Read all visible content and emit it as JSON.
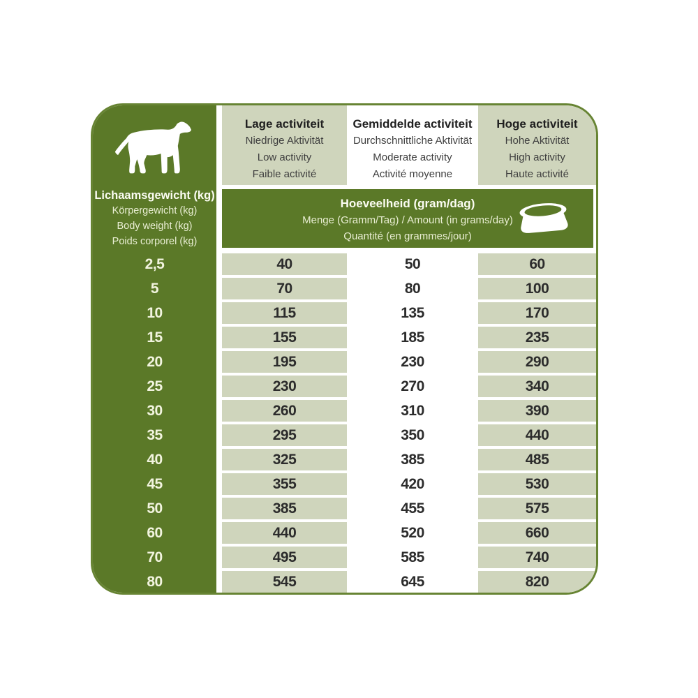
{
  "colors": {
    "dark_green": "#5b7928",
    "light_green": "#cfd5bc",
    "border_green": "#678433",
    "num": "#2c2c2c",
    "pale": "#e9eed3",
    "pale_bold": "#fbfcf2",
    "pale_num": "#f2f4df"
  },
  "icons": {
    "dog": "dog-silhouette-icon",
    "bowl": "dog-bowl-icon"
  },
  "left_column": {
    "header": {
      "bold": "Lichaamsgewicht (kg)",
      "lines": [
        "Körpergewicht (kg)",
        "Body weight (kg)",
        "Poids corporel (kg)"
      ]
    }
  },
  "activity_columns": [
    {
      "bold": "Lage activiteit",
      "lines": [
        "Niedrige Aktivität",
        "Low activity",
        "Faible activité"
      ]
    },
    {
      "bold": "Gemiddelde activiteit",
      "lines": [
        "Durchschnittliche Aktivität",
        "Moderate activity",
        "Activité moyenne"
      ]
    },
    {
      "bold": "Hoge activiteit",
      "lines": [
        "Hohe Aktivität",
        "High activity",
        "Haute activité"
      ]
    }
  ],
  "amount_banner": {
    "bold": "Hoeveelheid (gram/dag)",
    "line2": "Menge (Gramm/Tag) / Amount (in grams/day)",
    "line3": "Quantité (en grammes/jour)"
  },
  "rows": [
    {
      "weight": "2,5",
      "low": 40,
      "moderate": 50,
      "high": 60
    },
    {
      "weight": "5",
      "low": 70,
      "moderate": 80,
      "high": 100
    },
    {
      "weight": "10",
      "low": 115,
      "moderate": 135,
      "high": 170
    },
    {
      "weight": "15",
      "low": 155,
      "moderate": 185,
      "high": 235
    },
    {
      "weight": "20",
      "low": 195,
      "moderate": 230,
      "high": 290
    },
    {
      "weight": "25",
      "low": 230,
      "moderate": 270,
      "high": 340
    },
    {
      "weight": "30",
      "low": 260,
      "moderate": 310,
      "high": 390
    },
    {
      "weight": "35",
      "low": 295,
      "moderate": 350,
      "high": 440
    },
    {
      "weight": "40",
      "low": 325,
      "moderate": 385,
      "high": 485
    },
    {
      "weight": "45",
      "low": 355,
      "moderate": 420,
      "high": 530
    },
    {
      "weight": "50",
      "low": 385,
      "moderate": 455,
      "high": 575
    },
    {
      "weight": "60",
      "low": 440,
      "moderate": 520,
      "high": 660
    },
    {
      "weight": "70",
      "low": 495,
      "moderate": 585,
      "high": 740
    },
    {
      "weight": "80",
      "low": 545,
      "moderate": 645,
      "high": 820
    }
  ],
  "chart_data": {
    "type": "table",
    "title": "Hoeveelheid (gram/dag)",
    "xlabel": "Lichaamsgewicht (kg) / Body weight (kg)",
    "ylabel": "gram/dag / grams per day",
    "categories": [
      "2,5",
      "5",
      "10",
      "15",
      "20",
      "25",
      "30",
      "35",
      "40",
      "45",
      "50",
      "60",
      "70",
      "80"
    ],
    "series": [
      {
        "name": "Lage activiteit / Low activity",
        "values": [
          40,
          70,
          115,
          155,
          195,
          230,
          260,
          295,
          325,
          355,
          385,
          440,
          495,
          545
        ]
      },
      {
        "name": "Gemiddelde activiteit / Moderate activity",
        "values": [
          50,
          80,
          135,
          185,
          230,
          270,
          310,
          350,
          385,
          420,
          455,
          520,
          585,
          645
        ]
      },
      {
        "name": "Hoge activiteit / High activity",
        "values": [
          60,
          100,
          170,
          235,
          290,
          340,
          390,
          440,
          485,
          530,
          575,
          660,
          740,
          820
        ]
      }
    ]
  }
}
